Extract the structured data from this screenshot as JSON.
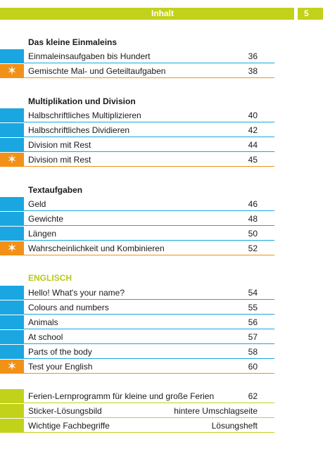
{
  "header": {
    "title": "Inhalt",
    "page_number": "5"
  },
  "colors": {
    "lime": "#c2d21a",
    "blue": "#1aa6e0",
    "orange": "#f29118"
  },
  "sections": [
    {
      "title": "Das kleine Einmaleins",
      "rows": [
        {
          "label": "Einmaleinsaufgaben bis Hundert",
          "page": "36",
          "color": "blue",
          "star": false
        },
        {
          "label": "Gemischte Mal- und Geteiltaufgaben",
          "page": "38",
          "color": "orange",
          "star": true
        }
      ]
    },
    {
      "title": "Multiplikation und Division",
      "rows": [
        {
          "label": "Halbschriftliches Multiplizieren",
          "page": "40",
          "color": "blue",
          "star": false
        },
        {
          "label": "Halbschriftliches Dividieren",
          "page": "42",
          "color": "blue",
          "star": false
        },
        {
          "label": "Division mit Rest",
          "page": "44",
          "color": "blue",
          "star": false
        },
        {
          "label": "Division mit Rest",
          "page": "45",
          "color": "orange",
          "star": true
        }
      ]
    },
    {
      "title": "Textaufgaben",
      "rows": [
        {
          "label": "Geld",
          "page": "46",
          "color": "blue",
          "star": false
        },
        {
          "label": "Gewichte",
          "page": "48",
          "color": "blue",
          "star": false
        },
        {
          "label": "Längen",
          "page": "50",
          "color": "blue",
          "star": false
        },
        {
          "label": "Wahrscheinlichkeit und Kombinieren",
          "page": "52",
          "color": "orange",
          "star": true
        }
      ]
    },
    {
      "title": "ENGLISCH",
      "rows": [
        {
          "label": "Hello! What's your name?",
          "page": "54",
          "color": "blue",
          "star": false
        },
        {
          "label": "Colours and numbers",
          "page": "55",
          "color": "blue",
          "star": false
        },
        {
          "label": "Animals",
          "page": "56",
          "color": "blue",
          "star": false
        },
        {
          "label": "At school",
          "page": "57",
          "color": "blue",
          "star": false
        },
        {
          "label": "Parts of the body",
          "page": "58",
          "color": "blue",
          "star": false
        },
        {
          "label": "Test your English",
          "page": "60",
          "color": "orange",
          "star": true
        }
      ]
    }
  ],
  "extras": [
    {
      "label": "Ferien-Lernprogramm für kleine und große Ferien",
      "page": "62",
      "color": "green",
      "star": false
    },
    {
      "label": "Sticker-Lösungsbild",
      "page": "hintere Umschlagseite",
      "color": "green",
      "star": false
    },
    {
      "label": "Wichtige Fachbegriffe",
      "page": "Lösungsheft",
      "color": "green",
      "star": false
    }
  ]
}
